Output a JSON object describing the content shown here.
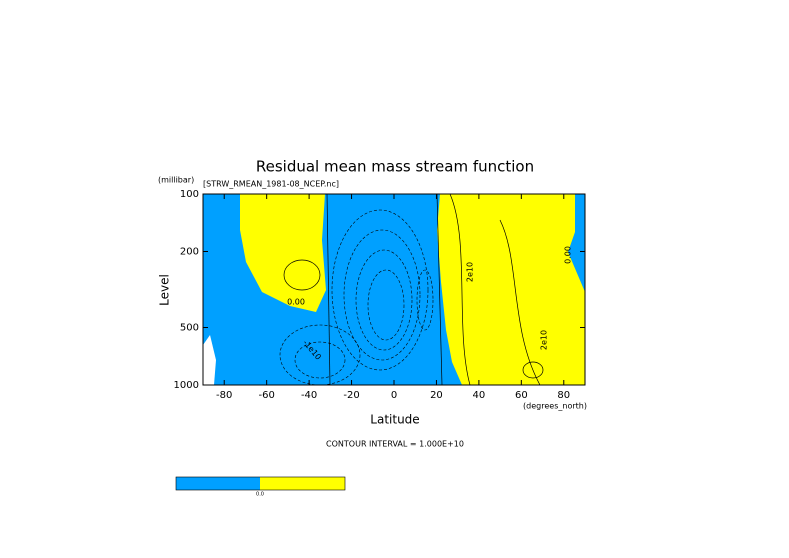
{
  "chart_data": {
    "type": "contour",
    "title": "Residual mean mass stream function",
    "subtitle": "[STRW_RMEAN_1981-08_NCEP.nc]",
    "y_unit": "(millibar)",
    "y_label": "Level",
    "x_label": "Latitude",
    "x_unit": "(degrees_north)",
    "note": "CONTOUR INTERVAL = 1.000E+10",
    "xlim": [
      -90,
      90
    ],
    "xticks": [
      -80,
      -60,
      -40,
      -20,
      0,
      20,
      40,
      60,
      80
    ],
    "ylim": [
      100,
      1000
    ],
    "yticks": [
      100,
      200,
      500,
      1000
    ],
    "log_y": true,
    "inverted_y": true,
    "colors": [
      "#00a0ff",
      "#ffff00"
    ],
    "contour_labels": [
      "0.00",
      "0.00",
      "2e10",
      "2e10",
      "-1e10"
    ],
    "colorbar_label": "0.0"
  }
}
